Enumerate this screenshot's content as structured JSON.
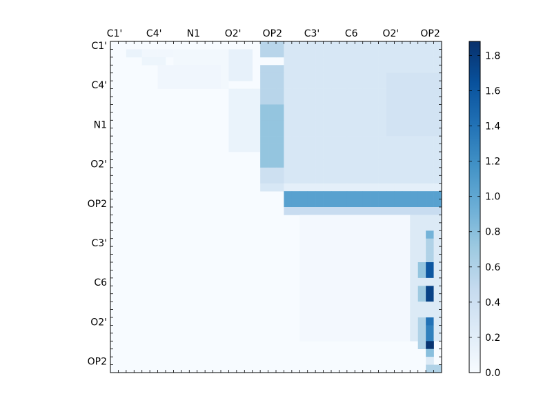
{
  "chart_data": {
    "type": "heatmap",
    "title": "",
    "xlabel": "",
    "ylabel": "",
    "n": 42,
    "xtick_labels": [
      "C1'",
      "C4'",
      "N1",
      "O2'",
      "OP2",
      "C3'",
      "C6",
      "O2'",
      "OP2"
    ],
    "ytick_labels": [
      "C1'",
      "C4'",
      "N1",
      "O2'",
      "OP2",
      "C3'",
      "C6",
      "O2'",
      "OP2"
    ],
    "colorbar": {
      "range": [
        0.0,
        1.88
      ],
      "ticks": [
        "0.0",
        "0.2",
        "0.4",
        "0.6",
        "0.8",
        "1.0",
        "1.2",
        "1.4",
        "1.6",
        "1.8"
      ],
      "colormap": [
        "#f7fbff",
        "#deebf7",
        "#c6dbef",
        "#9ecae1",
        "#6baed6",
        "#4292c6",
        "#2171b5",
        "#08519c",
        "#08306b"
      ]
    },
    "blocks": [
      {
        "rows": [
          1,
          1
        ],
        "cols": [
          2,
          3
        ],
        "value": 0.12
      },
      {
        "rows": [
          1,
          1
        ],
        "cols": [
          4,
          7
        ],
        "value": 0.06
      },
      {
        "rows": [
          1,
          5
        ],
        "cols": [
          8,
          14
        ],
        "value": 0.05
      },
      {
        "rows": [
          2,
          2
        ],
        "cols": [
          4,
          6
        ],
        "value": 0.09
      },
      {
        "rows": [
          3,
          5
        ],
        "cols": [
          6,
          13
        ],
        "value": 0.07
      },
      {
        "rows": [
          6,
          13
        ],
        "cols": [
          15,
          20
        ],
        "value": 0.12
      },
      {
        "rows": [
          1,
          4
        ],
        "cols": [
          15,
          17
        ],
        "value": 0.15
      },
      {
        "rows": [
          0,
          1
        ],
        "cols": [
          19,
          21
        ],
        "value": 0.55
      },
      {
        "rows": [
          3,
          7
        ],
        "cols": [
          19,
          21
        ],
        "value": 0.55
      },
      {
        "rows": [
          8,
          15
        ],
        "cols": [
          19,
          21
        ],
        "value": 0.75
      },
      {
        "rows": [
          16,
          17
        ],
        "cols": [
          19,
          21
        ],
        "value": 0.4
      },
      {
        "rows": [
          18,
          18
        ],
        "cols": [
          19,
          21
        ],
        "value": 0.3
      },
      {
        "rows": [
          0,
          17
        ],
        "cols": [
          22,
          41
        ],
        "value": 0.3
      },
      {
        "rows": [
          4,
          11
        ],
        "cols": [
          35,
          41
        ],
        "value": 0.35
      },
      {
        "rows": [
          18,
          18
        ],
        "cols": [
          22,
          41
        ],
        "value": 0.18
      },
      {
        "rows": [
          19,
          20
        ],
        "cols": [
          22,
          41
        ],
        "value": 1.05
      },
      {
        "rows": [
          21,
          21
        ],
        "cols": [
          22,
          41
        ],
        "value": 0.45
      },
      {
        "rows": [
          22,
          37
        ],
        "cols": [
          24,
          37
        ],
        "value": 0.04
      },
      {
        "rows": [
          22,
          37
        ],
        "cols": [
          38,
          41
        ],
        "value": 0.25
      },
      {
        "rows": [
          24,
          24
        ],
        "cols": [
          40,
          40
        ],
        "value": 0.9
      },
      {
        "rows": [
          25,
          27
        ],
        "cols": [
          40,
          40
        ],
        "value": 0.6
      },
      {
        "rows": [
          28,
          29
        ],
        "cols": [
          40,
          40
        ],
        "value": 1.6
      },
      {
        "rows": [
          28,
          29
        ],
        "cols": [
          39,
          39
        ],
        "value": 0.75
      },
      {
        "rows": [
          31,
          32
        ],
        "cols": [
          40,
          40
        ],
        "value": 1.75
      },
      {
        "rows": [
          31,
          32
        ],
        "cols": [
          39,
          39
        ],
        "value": 0.7
      },
      {
        "rows": [
          35,
          35
        ],
        "cols": [
          40,
          40
        ],
        "value": 1.4
      },
      {
        "rows": [
          36,
          37
        ],
        "cols": [
          40,
          40
        ],
        "value": 1.3
      },
      {
        "rows": [
          38,
          38
        ],
        "cols": [
          40,
          40
        ],
        "value": 1.85
      },
      {
        "rows": [
          35,
          38
        ],
        "cols": [
          39,
          39
        ],
        "value": 0.6
      },
      {
        "rows": [
          39,
          39
        ],
        "cols": [
          40,
          40
        ],
        "value": 0.8
      },
      {
        "rows": [
          40,
          40
        ],
        "cols": [
          40,
          40
        ],
        "value": 0.25
      },
      {
        "rows": [
          41,
          41
        ],
        "cols": [
          40,
          41
        ],
        "value": 0.6
      }
    ]
  }
}
